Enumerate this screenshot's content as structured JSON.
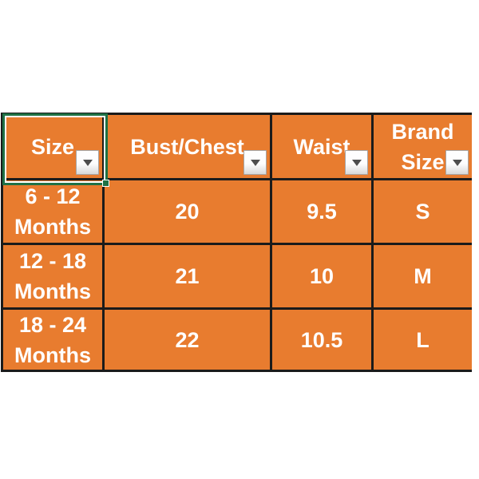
{
  "app": {
    "type": "spreadsheet-size-chart",
    "background_color": "#ffffff"
  },
  "table": {
    "fill_color": "#e87c2f",
    "border_color": "#1b1b1b",
    "selection_color": "#1f7145",
    "text_color": "#ffffff",
    "header": {
      "size": "Size",
      "bust_chest": "Bust/Chest",
      "waist": "Waist",
      "brand_line1": "Brand",
      "brand_line2": "Size"
    },
    "filter_icon": "filter-dropdown-triangle",
    "rows": [
      {
        "size_line1": "6 - 12",
        "size_line2": "Months",
        "bust_chest": "20",
        "waist": "9.5",
        "brand_size": "S"
      },
      {
        "size_line1": "12 - 18",
        "size_line2": "Months",
        "bust_chest": "21",
        "waist": "10",
        "brand_size": "M"
      },
      {
        "size_line1": "18 - 24",
        "size_line2": "Months",
        "bust_chest": "22",
        "waist": "10.5",
        "brand_size": "L"
      }
    ]
  }
}
